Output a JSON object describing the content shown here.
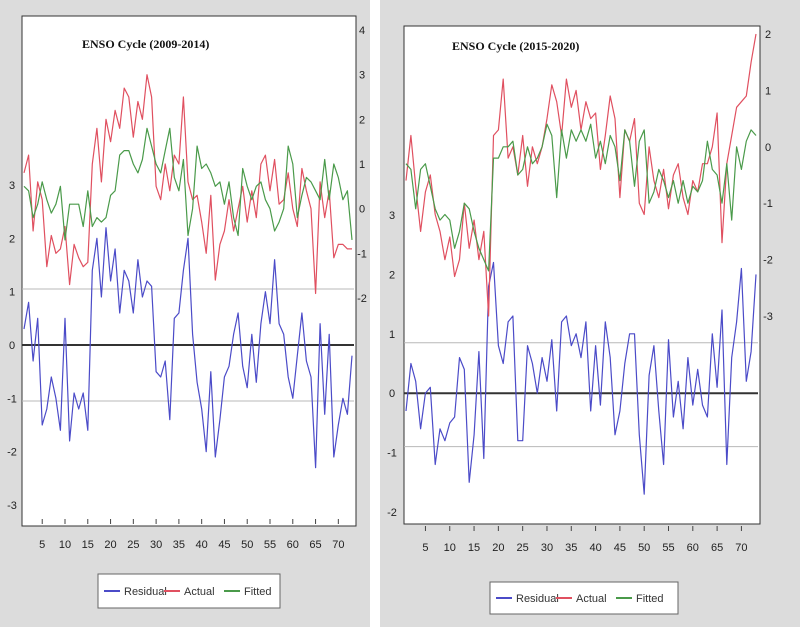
{
  "chart_data": [
    {
      "type": "line",
      "title": "ENSO Cycle (2009-2014)",
      "x_ticks": [
        5,
        10,
        15,
        20,
        25,
        30,
        35,
        40,
        45,
        50,
        55,
        60,
        65,
        70
      ],
      "x_range": [
        1,
        73
      ],
      "left_axis": {
        "range": [
          -3,
          3
        ],
        "ticks": [
          -3,
          -2,
          -1,
          0,
          1,
          2,
          3
        ]
      },
      "right_axis": {
        "range": [
          -2,
          4
        ],
        "ticks": [
          -2,
          -1,
          0,
          1,
          2,
          3,
          4
        ]
      },
      "series": [
        {
          "name": "Residual",
          "axis": "left",
          "color": "#4b4bc8",
          "values": [
            0.3,
            0.8,
            -0.3,
            0.5,
            -1.5,
            -1.2,
            -0.6,
            -1.0,
            -1.6,
            0.5,
            -1.8,
            -0.9,
            -1.2,
            -0.9,
            -1.6,
            1.4,
            2.0,
            0.9,
            2.2,
            1.2,
            1.8,
            0.6,
            1.4,
            1.2,
            0.6,
            1.6,
            0.9,
            1.2,
            1.1,
            -0.5,
            -0.6,
            -0.3,
            -1.4,
            0.5,
            0.6,
            1.4,
            2.0,
            0.2,
            -0.7,
            -1.2,
            -2.0,
            -0.5,
            -2.1,
            -1.4,
            -0.6,
            -0.4,
            0.2,
            0.6,
            -0.4,
            -0.8,
            0.2,
            -0.7,
            0.4,
            1.0,
            0.4,
            1.6,
            0.4,
            0.2,
            -0.6,
            -1.0,
            -0.2,
            0.6,
            -0.3,
            -0.6,
            -2.3,
            0.4,
            -1.3,
            0.2,
            -2.1,
            -1.5,
            -1.0,
            -1.3,
            -0.2
          ]
        },
        {
          "name": "Actual",
          "axis": "right",
          "color": "#e05060",
          "values": [
            0.8,
            1.2,
            -0.5,
            0.6,
            0.2,
            -1.3,
            -0.6,
            -1.0,
            -0.9,
            -0.4,
            -1.7,
            -0.8,
            -1.1,
            -1.3,
            -1.2,
            1.0,
            1.8,
            0.6,
            2.0,
            1.5,
            2.2,
            1.8,
            2.7,
            2.5,
            1.6,
            2.4,
            2.0,
            3.0,
            2.5,
            0.5,
            0.2,
            1.0,
            0.4,
            1.2,
            1.0,
            2.5,
            0.6,
            0.2,
            0.3,
            -0.3,
            -1.0,
            0.3,
            -1.6,
            -0.8,
            -0.5,
            0.2,
            -0.5,
            0.0,
            0.5,
            -0.3,
            0.4,
            -0.2,
            1.0,
            1.2,
            0.4,
            1.1,
            0.1,
            0.2,
            0.8,
            0.0,
            -0.4,
            0.9,
            0.4,
            0.0,
            -1.9,
            0.6,
            -0.2,
            0.4,
            -1.1,
            -0.8,
            -0.8,
            -0.9,
            -0.9
          ]
        },
        {
          "name": "Fitted",
          "axis": "right",
          "color": "#4a9a4a",
          "values": [
            0.5,
            0.4,
            -0.2,
            0.1,
            0.6,
            0.2,
            -0.1,
            0.1,
            0.5,
            -0.7,
            0.1,
            0.1,
            0.1,
            -0.4,
            0.4,
            -0.4,
            -0.2,
            -0.3,
            -0.2,
            0.3,
            0.4,
            1.2,
            1.3,
            1.3,
            1.0,
            0.8,
            1.1,
            1.8,
            1.4,
            1.0,
            0.8,
            1.3,
            1.8,
            0.7,
            0.4,
            1.1,
            -0.6,
            0.0,
            1.4,
            0.9,
            1.0,
            0.8,
            0.5,
            0.6,
            0.1,
            0.6,
            -0.2,
            -0.6,
            0.9,
            0.5,
            0.2,
            0.5,
            0.6,
            0.2,
            0.0,
            -0.5,
            -0.3,
            0.0,
            1.4,
            1.0,
            -0.2,
            0.3,
            0.7,
            0.6,
            0.4,
            0.2,
            1.1,
            0.2,
            1.0,
            0.7,
            0.2,
            0.4,
            -0.7
          ]
        }
      ],
      "legend": {
        "position": "bottom",
        "entries": [
          "Residual",
          "Actual",
          "Fitted"
        ]
      }
    },
    {
      "type": "line",
      "title": "ENSO Cycle (2015-2020)",
      "x_ticks": [
        5,
        10,
        15,
        20,
        25,
        30,
        35,
        40,
        45,
        50,
        55,
        60,
        65,
        70
      ],
      "x_range": [
        1,
        73
      ],
      "left_axis": {
        "range": [
          -2,
          3
        ],
        "ticks": [
          -2,
          -1,
          0,
          1,
          2,
          3
        ]
      },
      "right_axis": {
        "range": [
          -3,
          2
        ],
        "ticks": [
          -3,
          -2,
          -1,
          0,
          1,
          2
        ]
      },
      "series": [
        {
          "name": "Residual",
          "axis": "left",
          "color": "#4b4bc8",
          "values": [
            -0.3,
            0.5,
            0.2,
            -0.6,
            0.0,
            0.1,
            -1.2,
            -0.6,
            -0.8,
            -0.5,
            -0.4,
            0.6,
            0.4,
            -1.5,
            -0.7,
            0.7,
            -1.1,
            1.8,
            2.2,
            0.8,
            0.5,
            1.2,
            1.3,
            -0.8,
            -0.8,
            0.8,
            0.5,
            0.0,
            0.6,
            0.2,
            0.9,
            -0.3,
            1.2,
            1.3,
            0.8,
            1.0,
            0.6,
            1.2,
            -0.3,
            0.8,
            -0.2,
            1.2,
            0.6,
            -0.7,
            -0.3,
            0.5,
            1.0,
            1.0,
            -0.7,
            -1.7,
            0.3,
            0.8,
            -0.3,
            -1.2,
            0.9,
            -0.4,
            0.2,
            -0.6,
            0.6,
            -0.2,
            0.4,
            -0.2,
            -0.4,
            1.0,
            0.1,
            1.4,
            -1.2,
            0.6,
            1.2,
            2.1,
            0.2,
            0.7,
            2.0
          ]
        },
        {
          "name": "Actual",
          "axis": "right",
          "color": "#e05060",
          "values": [
            -0.6,
            0.2,
            -0.7,
            -1.5,
            -0.8,
            -0.5,
            -1.2,
            -1.5,
            -2.0,
            -1.6,
            -2.3,
            -2.0,
            -1.0,
            -1.8,
            -1.3,
            -2.0,
            -1.5,
            -3.0,
            0.2,
            0.3,
            1.2,
            -0.2,
            0.0,
            -0.5,
            0.2,
            -0.7,
            0.0,
            -0.3,
            0.0,
            0.5,
            1.1,
            0.8,
            0.2,
            1.2,
            0.7,
            1.0,
            0.3,
            0.8,
            0.5,
            0.6,
            -0.4,
            0.2,
            0.9,
            0.5,
            -0.9,
            0.3,
            0.1,
            0.5,
            -1.0,
            -1.2,
            0.0,
            -0.6,
            -0.9,
            -0.4,
            -1.1,
            -0.5,
            -0.3,
            -0.9,
            -1.2,
            -0.6,
            -0.8,
            -0.3,
            -0.3,
            0.0,
            0.6,
            -1.7,
            -0.3,
            0.2,
            0.7,
            0.8,
            0.9,
            1.5,
            2.0
          ]
        },
        {
          "name": "Fitted",
          "axis": "right",
          "color": "#4a9a4a",
          "values": [
            -0.3,
            -0.4,
            -1.1,
            -0.4,
            -0.3,
            -0.7,
            -1.1,
            -1.3,
            -1.2,
            -1.3,
            -1.8,
            -1.5,
            -1.0,
            -1.1,
            -1.5,
            -1.8,
            -2.0,
            -2.2,
            -0.2,
            -0.2,
            0.0,
            0.0,
            0.1,
            -0.5,
            -0.4,
            0.0,
            -0.3,
            -0.2,
            0.0,
            0.4,
            0.2,
            -0.9,
            0.3,
            -0.2,
            0.3,
            0.1,
            0.3,
            0.1,
            0.4,
            -0.2,
            0.1,
            -0.3,
            0.2,
            0.0,
            -0.6,
            0.3,
            0.1,
            -0.7,
            0.1,
            0.3,
            -1.0,
            -0.8,
            -0.4,
            -0.6,
            -0.9,
            -0.6,
            -1.0,
            -0.6,
            -1.0,
            -0.7,
            -0.8,
            -0.6,
            0.1,
            -0.4,
            -0.5,
            -1.0,
            -0.3,
            -1.3,
            0.0,
            -0.4,
            0.1,
            0.3,
            0.2
          ]
        }
      ],
      "legend": {
        "position": "bottom",
        "entries": [
          "Residual",
          "Actual",
          "Fitted"
        ]
      }
    }
  ]
}
